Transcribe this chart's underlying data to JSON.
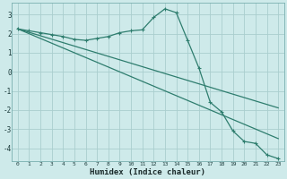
{
  "title": "",
  "xlabel": "Humidex (Indice chaleur)",
  "ylabel": "",
  "background_color": "#ceeaea",
  "grid_color": "#aacece",
  "line_color": "#2e7d6e",
  "xlim": [
    -0.5,
    23.5
  ],
  "ylim": [
    -4.7,
    3.6
  ],
  "yticks": [
    -4,
    -3,
    -2,
    -1,
    0,
    1,
    2,
    3
  ],
  "xticks": [
    0,
    1,
    2,
    3,
    4,
    5,
    6,
    7,
    8,
    9,
    10,
    11,
    12,
    13,
    14,
    15,
    16,
    17,
    18,
    19,
    20,
    21,
    22,
    23
  ],
  "series1_x": [
    0,
    1,
    2,
    3,
    4,
    5,
    6,
    7,
    8,
    9,
    10,
    11,
    12,
    13,
    14,
    15,
    16,
    17,
    18,
    19,
    20,
    21,
    22,
    23
  ],
  "series1_y": [
    2.25,
    2.15,
    2.05,
    1.95,
    1.85,
    1.7,
    1.65,
    1.75,
    1.85,
    2.05,
    2.15,
    2.2,
    2.85,
    3.3,
    3.1,
    1.65,
    0.2,
    -1.6,
    -2.1,
    -3.1,
    -3.65,
    -3.75,
    -4.35,
    -4.55
  ],
  "series2_x": [
    0,
    1,
    2,
    3,
    4,
    5,
    6,
    7,
    8,
    9,
    10,
    11,
    12,
    13,
    14,
    15,
    16,
    17,
    18,
    19,
    20,
    21,
    22,
    23
  ],
  "series2_y": [
    2.25,
    2.07,
    1.89,
    1.71,
    1.53,
    1.35,
    1.17,
    0.99,
    0.81,
    0.63,
    0.45,
    0.27,
    0.09,
    -0.09,
    -0.27,
    -0.45,
    -0.63,
    -0.81,
    -0.99,
    -1.17,
    -1.35,
    -1.53,
    -1.71,
    -1.89
  ],
  "series3_x": [
    0,
    1,
    2,
    3,
    4,
    5,
    6,
    7,
    8,
    9,
    10,
    11,
    12,
    13,
    14,
    15,
    16,
    17,
    18,
    19,
    20,
    21,
    22,
    23
  ],
  "series3_y": [
    2.25,
    2.0,
    1.75,
    1.5,
    1.25,
    1.0,
    0.75,
    0.5,
    0.25,
    0.0,
    -0.25,
    -0.5,
    -0.75,
    -1.0,
    -1.25,
    -1.5,
    -1.75,
    -2.0,
    -2.25,
    -2.5,
    -2.75,
    -3.0,
    -3.25,
    -3.5
  ]
}
